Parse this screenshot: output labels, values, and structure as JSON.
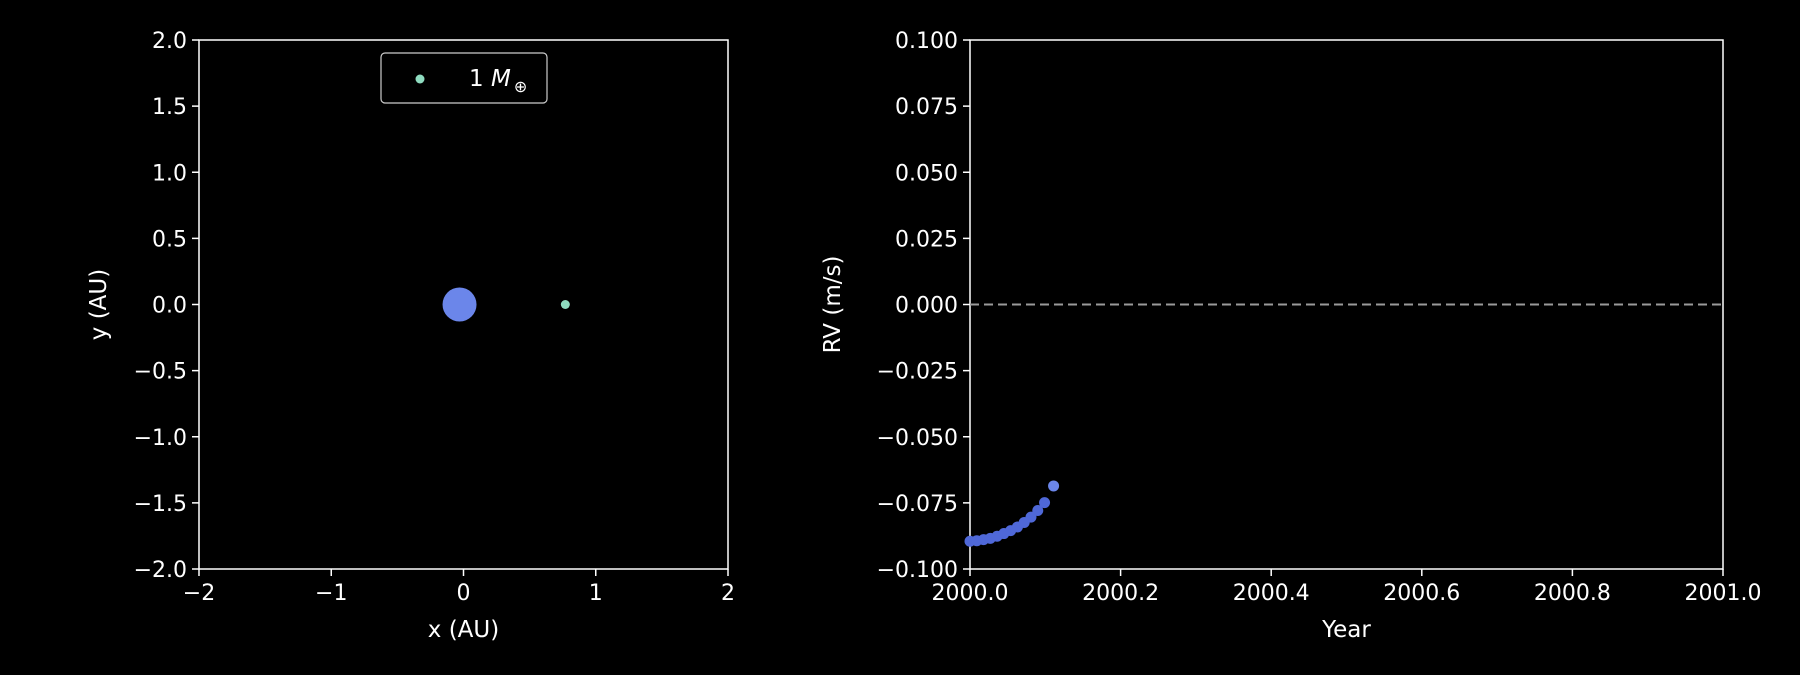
{
  "colors": {
    "background": "#000000",
    "foreground": "#ffffff",
    "star": "#6b86ea",
    "planet": "#8fdcc0",
    "rv_series": "#4f68d8",
    "rv_latest": "#6b86ea",
    "zero_line": "#9a9a9a"
  },
  "chart_data": [
    {
      "type": "scatter",
      "title": "",
      "xlabel": "x (AU)",
      "ylabel": "y (AU)",
      "xlim": [
        -2,
        2
      ],
      "ylim": [
        -2,
        2
      ],
      "xticks": [
        -2,
        -1,
        0,
        1,
        2
      ],
      "xtick_labels": [
        "−2",
        "−1",
        "0",
        "1",
        "2"
      ],
      "yticks": [
        2.0,
        1.5,
        1.0,
        0.5,
        0.0,
        -0.5,
        -1.0,
        -1.5,
        -2.0
      ],
      "ytick_labels": [
        "2.0",
        "1.5",
        "1.0",
        "0.5",
        "0.0",
        "−0.5",
        "−1.0",
        "−1.5",
        "−2.0"
      ],
      "grid": false,
      "legend": {
        "placement": "upper center",
        "entries": [
          {
            "marker": "planet",
            "text_prefix": "1 ",
            "text_symbol": "M",
            "text_subscript": "⊕"
          }
        ]
      },
      "series": [
        {
          "kind": "star",
          "x": -0.03,
          "y": 0.0
        },
        {
          "kind": "planet",
          "x": 0.77,
          "y": 0.0
        }
      ]
    },
    {
      "type": "scatter",
      "title": "",
      "xlabel": "Year",
      "ylabel": "RV (m/s)",
      "xlim": [
        2000.0,
        2001.0
      ],
      "ylim": [
        -0.1,
        0.1
      ],
      "xticks": [
        2000.0,
        2000.2,
        2000.4,
        2000.6,
        2000.8,
        2001.0
      ],
      "xtick_labels": [
        "2000.0",
        "2000.2",
        "2000.4",
        "2000.6",
        "2000.8",
        "2001.0"
      ],
      "yticks": [
        0.1,
        0.075,
        0.05,
        0.025,
        0.0,
        -0.025,
        -0.05,
        -0.075,
        -0.1
      ],
      "ytick_labels": [
        "0.100",
        "0.075",
        "0.050",
        "0.025",
        "0.000",
        "−0.025",
        "−0.050",
        "−0.075",
        "−0.100"
      ],
      "grid": false,
      "reference_line": {
        "y": 0.0,
        "style": "dashed"
      },
      "points": {
        "x": [
          2000.0,
          2000.009,
          2000.018,
          2000.027,
          2000.036,
          2000.045,
          2000.054,
          2000.063,
          2000.072,
          2000.081,
          2000.09,
          2000.099,
          2000.111
        ],
        "y": [
          -0.0895,
          -0.0893,
          -0.0889,
          -0.0884,
          -0.0876,
          -0.0866,
          -0.0855,
          -0.0841,
          -0.0824,
          -0.0804,
          -0.0779,
          -0.0749,
          -0.0686
        ]
      }
    }
  ]
}
